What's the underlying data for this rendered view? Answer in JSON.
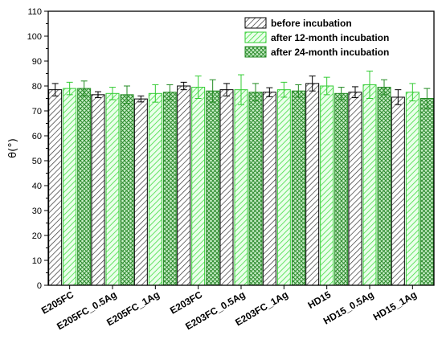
{
  "chart_data": {
    "type": "bar",
    "ylabel": "θ(°)",
    "ylim": [
      0,
      110
    ],
    "yticks": [
      0,
      10,
      20,
      30,
      40,
      50,
      60,
      70,
      80,
      90,
      100,
      110
    ],
    "categories": [
      "E205FC",
      "E205FC_0.5Ag",
      "E205FC_1Ag",
      "E203FC",
      "E203FC_0.5Ag",
      "E203FC_1Ag",
      "HD15",
      "HD15_0.5Ag",
      "HD15_1Ag"
    ],
    "legend_position": "top-right",
    "series": [
      {
        "name": "before incubation",
        "color": "#000000",
        "fill": "hatch-diagonal-black",
        "values": [
          78.5,
          76.5,
          74.8,
          80.0,
          78.5,
          77.5,
          81.0,
          77.5,
          75.5
        ],
        "errors": [
          2.5,
          1.2,
          1.2,
          1.5,
          2.5,
          1.8,
          3.0,
          2.2,
          3.0
        ]
      },
      {
        "name": "after 12-month incubation",
        "color": "#33cc33",
        "fill": "hatch-diagonal-green",
        "values": [
          79.0,
          77.0,
          77.0,
          79.5,
          78.5,
          78.5,
          80.0,
          80.5,
          77.5
        ],
        "errors": [
          2.5,
          2.5,
          3.5,
          4.5,
          6.0,
          3.0,
          3.5,
          5.5,
          3.5
        ]
      },
      {
        "name": "after 24-month incubation",
        "color": "#228b22",
        "fill": "crosshatch-green",
        "values": [
          79.0,
          76.5,
          77.5,
          78.0,
          77.5,
          78.0,
          77.0,
          79.5,
          75.0
        ],
        "errors": [
          3.0,
          3.5,
          3.0,
          4.5,
          3.5,
          2.5,
          2.5,
          3.0,
          4.0
        ]
      }
    ]
  }
}
